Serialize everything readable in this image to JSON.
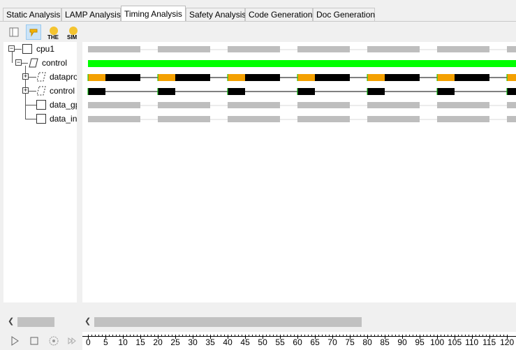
{
  "tabs": [
    {
      "label": "Static Analysis"
    },
    {
      "label": "LAMP Analysis"
    },
    {
      "label": "Timing Analysis"
    },
    {
      "label": "Safety Analysis"
    },
    {
      "label": "Code Generation"
    },
    {
      "label": "Doc Generation"
    }
  ],
  "active_tab": "Timing Analysis",
  "toolbar": {
    "the_label": "THE",
    "sim_label": "SIM"
  },
  "tree": [
    {
      "label": "cpu1"
    },
    {
      "label": "control"
    },
    {
      "label": "datapro"
    },
    {
      "label": "control"
    },
    {
      "label": "data_gp"
    },
    {
      "label": "data_in"
    }
  ],
  "colors": {
    "grey_bar": "#bebebe",
    "green_bar": "#00ff00",
    "orange": "#f4a000",
    "black": "#000000"
  },
  "gantt": {
    "period": 20,
    "view_start": 0,
    "view_end": 124,
    "rows": [
      {
        "type": "grey",
        "segments": [
          [
            0,
            15
          ],
          [
            20,
            35
          ],
          [
            40,
            55
          ],
          [
            60,
            75
          ],
          [
            80,
            95
          ],
          [
            100,
            115
          ],
          [
            120,
            135
          ]
        ]
      },
      {
        "type": "green",
        "segments": [
          [
            0,
            124
          ]
        ]
      },
      {
        "type": "orange-black",
        "segments": [
          [
            0,
            5,
            15
          ],
          [
            20,
            25,
            35
          ],
          [
            40,
            45,
            55
          ],
          [
            60,
            65,
            75
          ],
          [
            80,
            85,
            95
          ],
          [
            100,
            105,
            115
          ],
          [
            120,
            125,
            135
          ]
        ]
      },
      {
        "type": "black",
        "segments": [
          [
            0,
            5
          ],
          [
            20,
            25
          ],
          [
            40,
            45
          ],
          [
            60,
            65
          ],
          [
            80,
            85
          ],
          [
            100,
            105
          ],
          [
            120,
            125
          ]
        ]
      },
      {
        "type": "grey",
        "segments": [
          [
            0,
            15
          ],
          [
            20,
            35
          ],
          [
            40,
            55
          ],
          [
            60,
            75
          ],
          [
            80,
            95
          ],
          [
            100,
            115
          ],
          [
            120,
            135
          ]
        ]
      },
      {
        "type": "grey",
        "segments": [
          [
            0,
            15
          ],
          [
            20,
            35
          ],
          [
            40,
            55
          ],
          [
            60,
            75
          ],
          [
            80,
            95
          ],
          [
            100,
            115
          ],
          [
            120,
            135
          ]
        ]
      }
    ]
  },
  "ruler": {
    "labels": [
      "0",
      "5",
      "10",
      "15",
      "20",
      "25",
      "30",
      "35",
      "40",
      "45",
      "50",
      "55",
      "60",
      "65",
      "70",
      "75",
      "80",
      "85",
      "90",
      "95",
      "100",
      "105",
      "110",
      "115",
      "120"
    ]
  }
}
